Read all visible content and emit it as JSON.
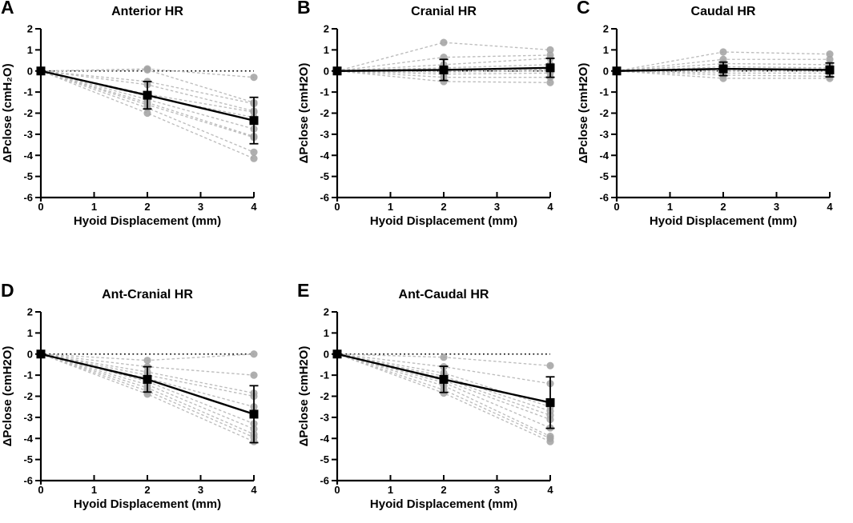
{
  "figure": {
    "background": "#ffffff",
    "colors": {
      "mean": "#000000",
      "individual_marker": "#a4a4a4",
      "individual_line": "#bcbcbc",
      "reference_line": "#000000"
    }
  },
  "chart_data": [
    {
      "panel": "A",
      "type": "line",
      "title": "Anterior HR",
      "xlabel": "Hyoid Displacement (mm)",
      "ylabel": "ΔPclose (cmH₂O)",
      "x": [
        0,
        2,
        4
      ],
      "xlim": [
        0,
        4
      ],
      "ylim": [
        -6,
        2
      ],
      "xticks": [
        0,
        1,
        2,
        3,
        4
      ],
      "yticks": [
        2,
        1,
        0,
        -1,
        -2,
        -3,
        -4,
        -5,
        -6
      ],
      "grid": false,
      "legend": false,
      "reference_line_y": 0,
      "mean_series": {
        "name": "mean ± SD",
        "values": [
          0,
          -1.15,
          -2.35
        ],
        "sd": [
          0,
          0.65,
          1.1
        ]
      },
      "individual_series": [
        [
          0,
          0.1,
          -0.3
        ],
        [
          0,
          0.05,
          -1.5
        ],
        [
          0,
          -0.5,
          -1.55
        ],
        [
          0,
          -0.65,
          -1.9
        ],
        [
          0,
          -1.1,
          -1.95
        ],
        [
          0,
          -1.2,
          -2.2
        ],
        [
          0,
          -1.35,
          -2.75
        ],
        [
          0,
          -1.5,
          -3.1
        ],
        [
          0,
          -1.6,
          -3.15
        ],
        [
          0,
          -1.75,
          -3.85
        ],
        [
          0,
          -2.0,
          -4.15
        ]
      ]
    },
    {
      "panel": "B",
      "type": "line",
      "title": "Cranial HR",
      "xlabel": "Hyoid Displacement (mm)",
      "ylabel": "ΔPclose (cmH2O)",
      "x": [
        0,
        2,
        4
      ],
      "xlim": [
        0,
        4
      ],
      "ylim": [
        -6,
        2
      ],
      "xticks": [
        0,
        1,
        2,
        3,
        4
      ],
      "yticks": [
        2,
        1,
        0,
        -1,
        -2,
        -3,
        -4,
        -5,
        -6
      ],
      "grid": false,
      "legend": false,
      "reference_line_y": 0,
      "mean_series": {
        "name": "mean ± SD",
        "values": [
          0,
          0.05,
          0.15
        ],
        "sd": [
          0,
          0.5,
          0.45
        ]
      },
      "individual_series": [
        [
          0,
          1.35,
          1.0
        ],
        [
          0,
          0.65,
          0.75
        ],
        [
          0,
          0.3,
          0.6
        ],
        [
          0,
          0.15,
          0.3
        ],
        [
          0,
          0.1,
          0.1
        ],
        [
          0,
          0.0,
          0.05
        ],
        [
          0,
          -0.05,
          0.0
        ],
        [
          0,
          -0.15,
          -0.1
        ],
        [
          0,
          -0.3,
          -0.3
        ],
        [
          0,
          -0.5,
          -0.55
        ]
      ]
    },
    {
      "panel": "C",
      "type": "line",
      "title": "Caudal HR",
      "xlabel": "Hyoid Displacement (mm)",
      "ylabel": "ΔPclose (cmH2O)",
      "x": [
        0,
        2,
        4
      ],
      "xlim": [
        0,
        4
      ],
      "ylim": [
        -6,
        2
      ],
      "xticks": [
        0,
        1,
        2,
        3,
        4
      ],
      "yticks": [
        2,
        1,
        0,
        -1,
        -2,
        -3,
        -4,
        -5,
        -6
      ],
      "grid": false,
      "legend": false,
      "reference_line_y": 0,
      "mean_series": {
        "name": "mean ± SD",
        "values": [
          0,
          0.1,
          0.05
        ],
        "sd": [
          0,
          0.32,
          0.33
        ]
      },
      "individual_series": [
        [
          0,
          0.9,
          0.8
        ],
        [
          0,
          0.55,
          0.55
        ],
        [
          0,
          0.35,
          0.3
        ],
        [
          0,
          0.2,
          0.15
        ],
        [
          0,
          0.1,
          0.1
        ],
        [
          0,
          0.05,
          0.05
        ],
        [
          0,
          0.0,
          0.0
        ],
        [
          0,
          -0.1,
          -0.1
        ],
        [
          0,
          -0.2,
          -0.25
        ],
        [
          0,
          -0.35,
          -0.35
        ]
      ]
    },
    {
      "panel": "D",
      "type": "line",
      "title": "Ant-Cranial HR",
      "xlabel": "Hyoid Displacement (mm)",
      "ylabel": "ΔPclose (cmH2O)",
      "x": [
        0,
        2,
        4
      ],
      "xlim": [
        0,
        4
      ],
      "ylim": [
        -6,
        2
      ],
      "xticks": [
        0,
        1,
        2,
        3,
        4
      ],
      "yticks": [
        2,
        1,
        0,
        -1,
        -2,
        -3,
        -4,
        -5,
        -6
      ],
      "grid": false,
      "legend": false,
      "reference_line_y": 0,
      "mean_series": {
        "name": "mean ± SD",
        "values": [
          0,
          -1.2,
          -2.85
        ],
        "sd": [
          0,
          0.6,
          1.35
        ]
      },
      "individual_series": [
        [
          0,
          -0.3,
          0.0
        ],
        [
          0,
          -0.6,
          -1.0
        ],
        [
          0,
          -0.85,
          -1.85
        ],
        [
          0,
          -1.0,
          -2.0
        ],
        [
          0,
          -1.15,
          -2.5
        ],
        [
          0,
          -1.3,
          -3.3
        ],
        [
          0,
          -1.45,
          -3.55
        ],
        [
          0,
          -1.6,
          -3.8
        ],
        [
          0,
          -1.75,
          -3.95
        ],
        [
          0,
          -1.9,
          -4.15
        ]
      ]
    },
    {
      "panel": "E",
      "type": "line",
      "title": "Ant-Caudal HR",
      "xlabel": "Hyoid Displacement (mm)",
      "ylabel": "ΔPclose (cmH2O)",
      "x": [
        0,
        2,
        4
      ],
      "xlim": [
        0,
        4
      ],
      "ylim": [
        -6,
        2
      ],
      "xticks": [
        0,
        1,
        2,
        3,
        4
      ],
      "yticks": [
        2,
        1,
        0,
        -1,
        -2,
        -3,
        -4,
        -5,
        -6
      ],
      "grid": false,
      "legend": false,
      "reference_line_y": 0,
      "mean_series": {
        "name": "mean ± SD",
        "values": [
          0,
          -1.2,
          -2.3
        ],
        "sd": [
          0,
          0.62,
          1.22
        ]
      },
      "individual_series": [
        [
          0,
          -0.15,
          -0.55
        ],
        [
          0,
          -0.6,
          -1.4
        ],
        [
          0,
          -0.9,
          -2.5
        ],
        [
          0,
          -1.05,
          -2.7
        ],
        [
          0,
          -1.15,
          -2.9
        ],
        [
          0,
          -1.25,
          -3.1
        ],
        [
          0,
          -1.35,
          -3.5
        ],
        [
          0,
          -1.5,
          -3.9
        ],
        [
          0,
          -1.7,
          -4.0
        ],
        [
          0,
          -1.85,
          -4.15
        ]
      ]
    }
  ]
}
